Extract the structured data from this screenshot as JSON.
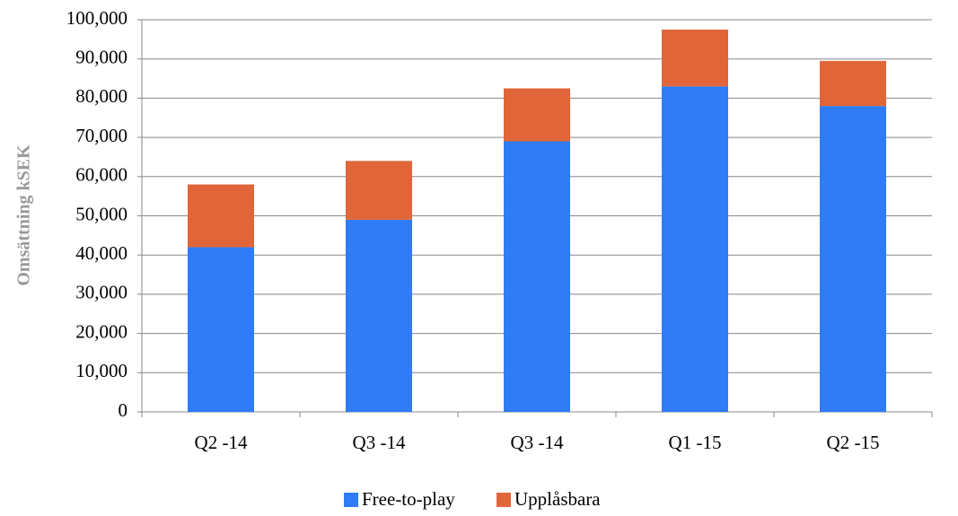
{
  "chart_data": {
    "type": "stacked_bar",
    "y_label": "Omsättning kSEK",
    "categories": [
      "Q2 -14",
      "Q3 -14",
      "Q3 -14",
      "Q1 -15",
      "Q2 -15"
    ],
    "series": [
      {
        "name": "Free-to-play",
        "color": "#2f7cf6",
        "values": [
          42000,
          49000,
          69000,
          83000,
          78000
        ]
      },
      {
        "name": "Upplåsbara",
        "color": "#e0663a",
        "values": [
          16000,
          15000,
          13500,
          14500,
          11500
        ]
      }
    ],
    "ylim": [
      0,
      100000
    ],
    "yticks": [
      0,
      {
        "value": 10000,
        "label": "10,000"
      },
      {
        "value": 20000,
        "label": "20,000"
      },
      {
        "value": 30000,
        "label": "30,000"
      },
      {
        "value": 40000,
        "label": "40,000"
      },
      {
        "value": 50000,
        "label": "50,000"
      },
      {
        "value": 60000,
        "label": "60,000"
      },
      {
        "value": 70000,
        "label": "70,000"
      },
      {
        "value": 80000,
        "label": "80,000"
      },
      {
        "value": 90000,
        "label": "90,000"
      },
      {
        "value": 100000,
        "label": "100,000"
      }
    ],
    "grid": true,
    "legend": "bottom"
  }
}
